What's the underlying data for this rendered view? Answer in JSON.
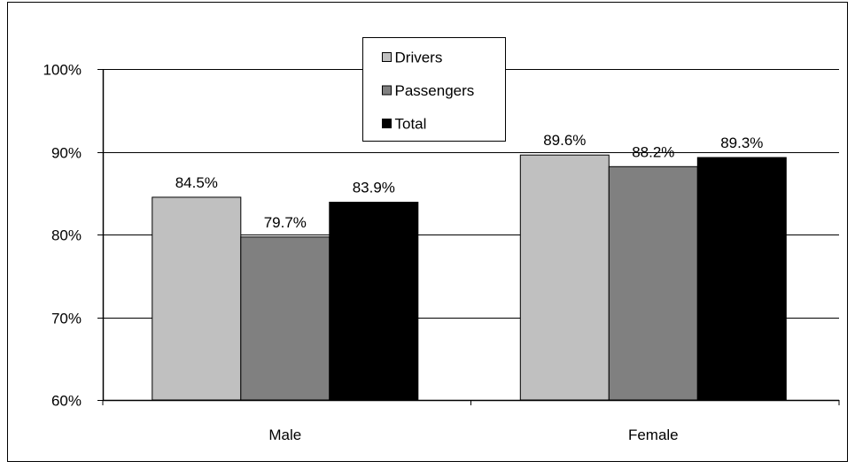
{
  "chart_data": {
    "type": "bar",
    "categories": [
      "Male",
      "Female"
    ],
    "series": [
      {
        "name": "Drivers",
        "values": [
          84.5,
          89.6
        ],
        "labels": [
          "84.5%",
          "89.6%"
        ],
        "color": "#c0c0c0"
      },
      {
        "name": "Passengers",
        "values": [
          79.7,
          88.2
        ],
        "labels": [
          "79.7%",
          "88.2%"
        ],
        "color": "#808080"
      },
      {
        "name": "Total",
        "values": [
          83.9,
          89.3
        ],
        "labels": [
          "83.9%",
          "89.3%"
        ],
        "color": "#000000"
      }
    ],
    "ylim": [
      60,
      100
    ],
    "yticks": [
      60,
      70,
      80,
      90,
      100
    ],
    "ytick_labels": [
      "60%",
      "70%",
      "80%",
      "90%",
      "100%"
    ],
    "grid": true,
    "legend_position": "top-center"
  }
}
